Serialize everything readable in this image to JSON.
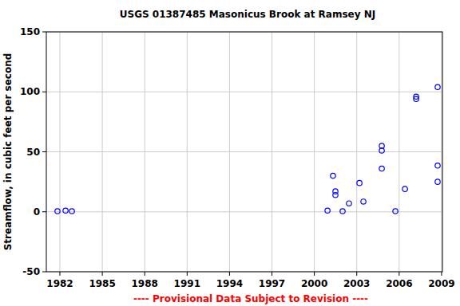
{
  "chart_data": {
    "type": "scatter",
    "title": "USGS 01387485 Masonicus Brook at Ramsey NJ",
    "y_label": "Streamflow, in cubic feet per second",
    "annotations": [
      "---- Provisional Data Subject to Revision ----"
    ],
    "x": [
      1981.83,
      1982.4,
      1982.85,
      2000.93,
      2001.32,
      2001.49,
      2001.49,
      2002.0,
      2002.45,
      2003.19,
      2003.47,
      2004.77,
      2004.77,
      2004.77,
      2005.73,
      2006.41,
      2007.2,
      2007.2,
      2008.72,
      2008.72,
      2008.72
    ],
    "values": [
      0.5,
      1,
      0.5,
      1,
      30,
      17,
      14,
      0.5,
      7,
      24,
      8.5,
      55,
      51,
      36,
      0.5,
      19,
      96,
      94,
      104,
      38.5,
      25
    ],
    "color": "#0000ff",
    "marker": "circle",
    "xlim": [
      1981.04,
      2009.06
    ],
    "ylim": [
      -50,
      150
    ],
    "xticks": [
      1982,
      1985,
      1988,
      1991,
      1994,
      1997,
      2000,
      2003,
      2006,
      2009
    ],
    "yticks": [
      -50,
      0,
      50,
      100,
      150
    ],
    "grid": true
  }
}
